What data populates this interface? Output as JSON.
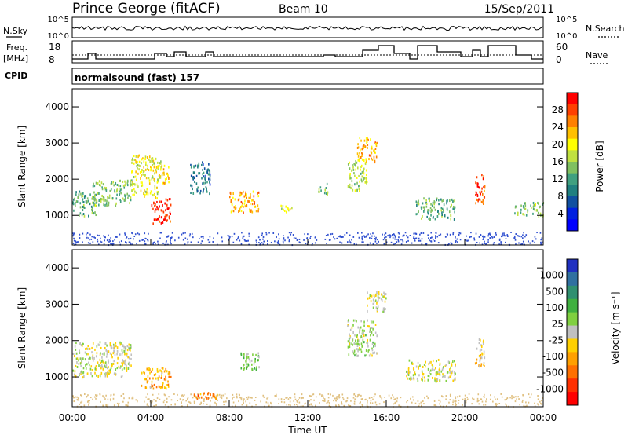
{
  "header": {
    "station": "Prince George (fitACF)",
    "beam": "Beam 10",
    "date": "15/Sep/2011"
  },
  "top_panel": {
    "left_label": "N.Sky",
    "right_label": "N.Search",
    "left_ticks": [
      "10^5",
      "10^0"
    ],
    "right_ticks": [
      "10^5",
      "10^0"
    ]
  },
  "freq_panel": {
    "left_label_line1": "Freq.",
    "left_label_line2": "[MHz]",
    "left_ticks": [
      "18",
      "8"
    ],
    "right_label": "Nave",
    "right_ticks": [
      "60",
      "0"
    ]
  },
  "cpid": {
    "label": "CPID",
    "program": "normalsound (fast) 157"
  },
  "axes": {
    "ylabel": "Slant Range [km]",
    "yticks": [
      "4000",
      "3000",
      "2000",
      "1000"
    ],
    "xlabel": "Time UT",
    "xticks": [
      "00:00",
      "04:00",
      "08:00",
      "12:00",
      "16:00",
      "20:00",
      "00:00"
    ]
  },
  "power_colorbar": {
    "label": "Power [dB]",
    "ticks": [
      "28",
      "24",
      "20",
      "16",
      "12",
      "8",
      "4"
    ],
    "colors": [
      "#ff0000",
      "#ff4000",
      "#ff8000",
      "#ffc000",
      "#ffff00",
      "#c0e040",
      "#80c060",
      "#40a080",
      "#208080",
      "#1050a0",
      "#0020e0",
      "#0000ff"
    ]
  },
  "velocity_colorbar": {
    "label": "Velocity [m s⁻¹]",
    "ticks": [
      "1000",
      "500",
      "100",
      "25",
      "-25",
      "-100",
      "-500",
      "-1000"
    ],
    "colors": [
      "#2030c0",
      "#3070a0",
      "#309070",
      "#40b040",
      "#80d040",
      "#c0c0c0",
      "#ffd000",
      "#ffa000",
      "#ff7000",
      "#ff3000",
      "#ff0000"
    ]
  },
  "chart_data": [
    {
      "type": "heatmap",
      "title": "Power [dB]",
      "xlabel": "Time UT",
      "ylabel": "Slant Range [km]",
      "xlim": [
        "00:00",
        "24:00"
      ],
      "ylim": [
        180,
        4500
      ],
      "clim": [
        0,
        30
      ],
      "blobs": [
        {
          "t": [
            0.0,
            1.2
          ],
          "r": [
            1000,
            1700
          ],
          "v": 12
        },
        {
          "t": [
            1.0,
            3.0
          ],
          "r": [
            1300,
            2000
          ],
          "v": 14
        },
        {
          "t": [
            3.0,
            4.5
          ],
          "r": [
            1500,
            2700
          ],
          "v": 18
        },
        {
          "t": [
            4.0,
            5.0
          ],
          "r": [
            800,
            1500
          ],
          "v": 28
        },
        {
          "t": [
            4.5,
            5.0
          ],
          "r": [
            1900,
            2400
          ],
          "v": 20
        },
        {
          "t": [
            6.0,
            7.0
          ],
          "r": [
            1600,
            2500
          ],
          "v": 8
        },
        {
          "t": [
            8.0,
            9.5
          ],
          "r": [
            1100,
            1700
          ],
          "v": 22
        },
        {
          "t": [
            10.5,
            11.2
          ],
          "r": [
            1100,
            1300
          ],
          "v": 18
        },
        {
          "t": [
            12.5,
            13.0
          ],
          "r": [
            1600,
            1900
          ],
          "v": 14
        },
        {
          "t": [
            14.0,
            15.0
          ],
          "r": [
            1700,
            2600
          ],
          "v": 16
        },
        {
          "t": [
            14.5,
            15.5
          ],
          "r": [
            2500,
            3200
          ],
          "v": 22
        },
        {
          "t": [
            17.5,
            19.5
          ],
          "r": [
            900,
            1500
          ],
          "v": 12
        },
        {
          "t": [
            20.5,
            21.0
          ],
          "r": [
            1300,
            2200
          ],
          "v": 26
        },
        {
          "t": [
            22.5,
            24.0
          ],
          "r": [
            1000,
            1400
          ],
          "v": 14
        }
      ]
    },
    {
      "type": "heatmap",
      "title": "Velocity [m s⁻¹]",
      "xlabel": "Time UT",
      "ylabel": "Slant Range [km]",
      "xlim": [
        "00:00",
        "24:00"
      ],
      "ylim": [
        180,
        4500
      ],
      "clim": [
        -1000,
        1000
      ],
      "blobs": [
        {
          "t": [
            0.0,
            3.0
          ],
          "r": [
            1000,
            2000
          ],
          "v": 0
        },
        {
          "t": [
            3.5,
            5.0
          ],
          "r": [
            700,
            1300
          ],
          "v": -300
        },
        {
          "t": [
            6.0,
            7.5
          ],
          "r": [
            400,
            600
          ],
          "v": -400
        },
        {
          "t": [
            8.5,
            9.5
          ],
          "r": [
            1200,
            1700
          ],
          "v": 200
        },
        {
          "t": [
            14.0,
            15.5
          ],
          "r": [
            1600,
            2600
          ],
          "v": 100
        },
        {
          "t": [
            15.0,
            16.0
          ],
          "r": [
            2800,
            3400
          ],
          "v": 0
        },
        {
          "t": [
            17.0,
            19.5
          ],
          "r": [
            900,
            1500
          ],
          "v": 0
        },
        {
          "t": [
            20.5,
            21.0
          ],
          "r": [
            1300,
            2100
          ],
          "v": -150
        }
      ]
    }
  ]
}
